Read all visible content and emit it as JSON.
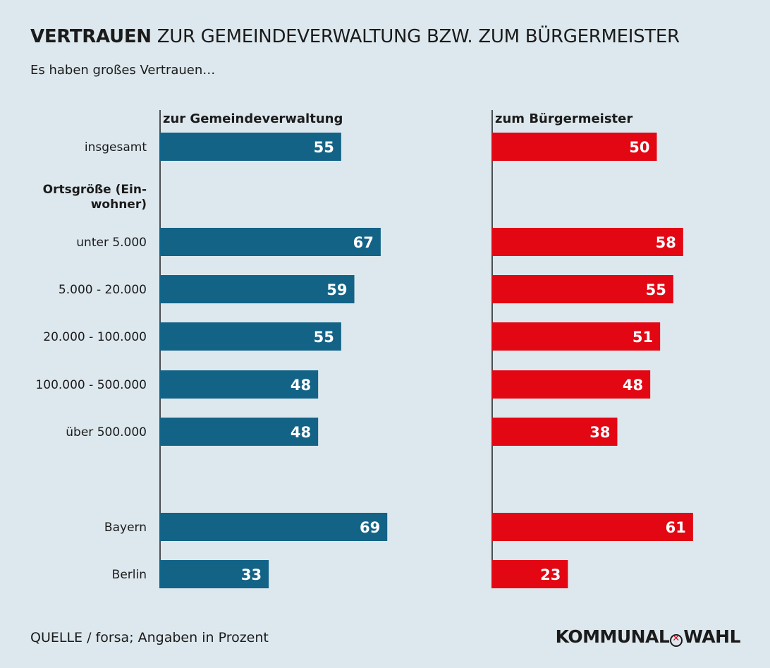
{
  "title": {
    "bold": "VERTRAUEN",
    "rest": " ZUR GEMEINDEVERWALTUNG BZW. ZUM BÜRGERMEISTER"
  },
  "subtitle": "Es haben großes Vertrauen…",
  "source": "QUELLE / forsa; Angaben in Prozent",
  "brand": {
    "left": "KOMMUNAL",
    "right": "WAHL"
  },
  "colors": {
    "left": "#136387",
    "right": "#e30613",
    "background": "#dde8ee"
  },
  "chart_data": {
    "type": "bar",
    "orientation": "horizontal",
    "xlim": [
      0,
      100
    ],
    "panels": [
      "zur Gemeindeverwaltung",
      "zum Bürgermeister"
    ],
    "section_header": "Ortsgröße (Ein-wohner)",
    "categories": [
      "insgesamt",
      "unter 5.000",
      "5.000 - 20.000",
      "20.000 - 100.000",
      "100.000 - 500.000",
      "über 500.000",
      "Bayern",
      "Berlin"
    ],
    "series": [
      {
        "name": "zur Gemeindeverwaltung",
        "values": [
          55,
          67,
          59,
          55,
          48,
          48,
          69,
          33
        ]
      },
      {
        "name": "zum Bürgermeister",
        "values": [
          50,
          58,
          55,
          51,
          48,
          38,
          61,
          23
        ]
      }
    ]
  }
}
